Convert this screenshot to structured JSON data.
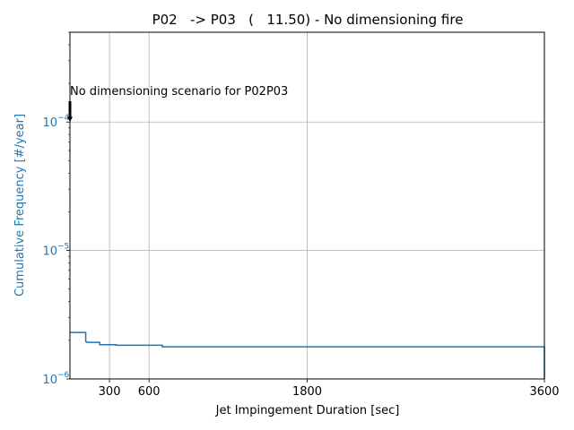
{
  "chart_data": {
    "type": "line",
    "title": "P02   -> P03   (   11.50) - No dimensioning fire",
    "xlabel": "Jet Impingement Duration [sec]",
    "ylabel": "Cumulative Frequency [#/year]",
    "xlim": [
      0,
      3600
    ],
    "ylim": [
      1e-06,
      0.0005
    ],
    "yscale": "log",
    "grid": true,
    "x_ticks": [
      {
        "value": 300,
        "label": "300"
      },
      {
        "value": 600,
        "label": "600"
      },
      {
        "value": 1800,
        "label": "1800"
      },
      {
        "value": 3600,
        "label": "3600"
      }
    ],
    "y_ticks": [
      {
        "value": 1e-06,
        "base": "10",
        "exp": "−6"
      },
      {
        "value": 1e-05,
        "base": "10",
        "exp": "−5"
      },
      {
        "value": 0.0001,
        "base": "10",
        "exp": "−4"
      }
    ],
    "series": [
      {
        "name": "",
        "color": "#1f77b4",
        "step": "post",
        "points": [
          [
            0,
            2.3e-06
          ],
          [
            120,
            2.3e-06
          ],
          [
            120,
            1.95e-06
          ],
          [
            135,
            1.93e-06
          ],
          [
            225,
            1.93e-06
          ],
          [
            225,
            1.85e-06
          ],
          [
            350,
            1.85e-06
          ],
          [
            350,
            1.83e-06
          ],
          [
            700,
            1.83e-06
          ],
          [
            700,
            1.78e-06
          ],
          [
            3600,
            1.78e-06
          ],
          [
            3600,
            1e-06
          ]
        ]
      }
    ],
    "annotations": [
      {
        "text": "No dimensioning scenario for P02P03",
        "x": 0,
        "y": 0.00015,
        "arrow_to": [
          0,
          0.0001
        ]
      }
    ]
  },
  "colors": {
    "series": "#1f77b4",
    "grid": "#b0b0b0",
    "axis": "#000000",
    "ylabel": "#1f77b4"
  }
}
